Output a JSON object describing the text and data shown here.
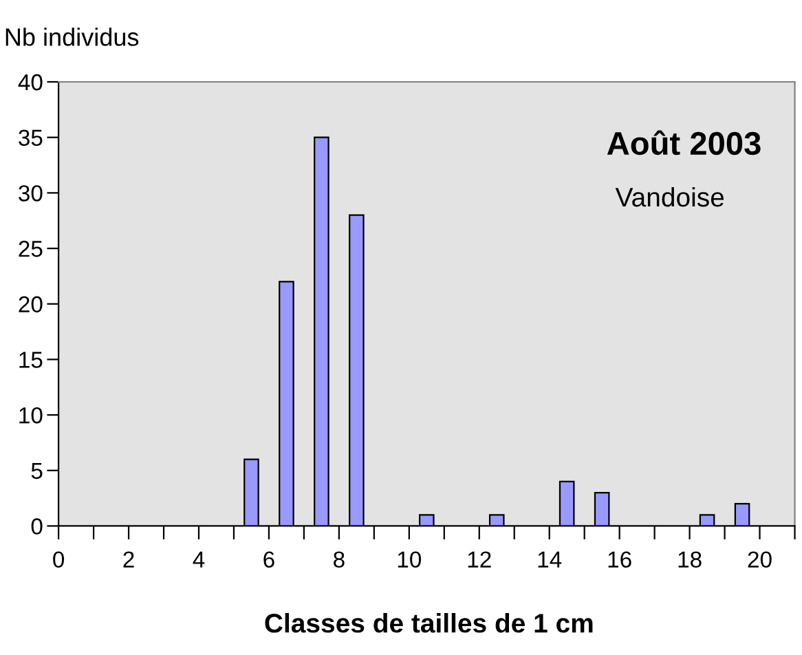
{
  "chart_data": {
    "type": "bar",
    "title": "Août 2003",
    "subtitle": "Vandoise",
    "xlabel": "Classes de tailles de 1 cm",
    "ylabel": "Nb individus",
    "x": [
      5.5,
      6.5,
      7.5,
      8.5,
      10.5,
      12.5,
      14.5,
      15.5,
      18.5,
      19.5
    ],
    "values": [
      6,
      22,
      35,
      28,
      1,
      1,
      4,
      3,
      1,
      2
    ],
    "color": "#9999ff",
    "xlim": [
      0,
      21
    ],
    "ylim": [
      0,
      40
    ],
    "xticks": [
      0,
      {
        "value": 1,
        "label": null
      },
      2,
      {
        "value": 3,
        "label": null
      },
      4,
      {
        "value": 5,
        "label": null
      },
      6,
      {
        "value": 7,
        "label": null
      },
      8,
      {
        "value": 9,
        "label": null
      },
      10,
      {
        "value": 11,
        "label": null
      },
      12,
      {
        "value": 13,
        "label": null
      },
      14,
      {
        "value": 15,
        "label": null
      },
      16,
      {
        "value": 17,
        "label": null
      },
      18,
      {
        "value": 19,
        "label": null
      },
      20,
      {
        "value": 21,
        "label": null
      }
    ],
    "yticks": [
      0,
      5,
      10,
      15,
      20,
      25,
      30,
      35,
      40
    ],
    "grid": false
  }
}
